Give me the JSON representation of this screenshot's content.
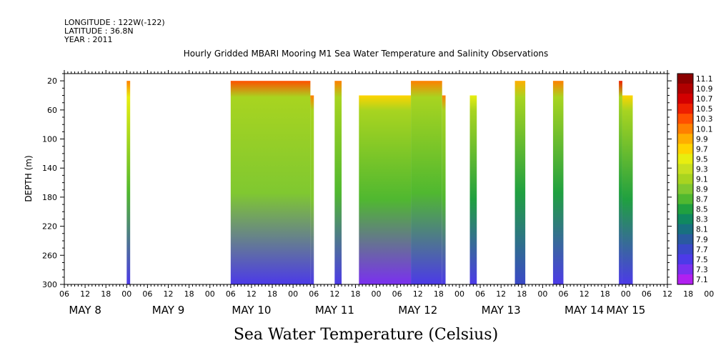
{
  "header": {
    "longitude": "LONGITUDE : 122W(-122)",
    "latitude": "LATITUDE : 36.8N",
    "year": "YEAR : 2011"
  },
  "chart_data": {
    "type": "heatmap",
    "title": "Hourly Gridded MBARI Mooring M1 Sea Water Temperature and Salinity Observations",
    "ylabel": "DEPTH (m)",
    "ylim": [
      300,
      10
    ],
    "y_reversed": true,
    "yticks": [
      20,
      60,
      100,
      140,
      180,
      220,
      260,
      300
    ],
    "xlim_hours": [
      0,
      174
    ],
    "hour_tick_labels": [
      "06",
      "12",
      "18",
      "00",
      "06",
      "12",
      "18",
      "00",
      "06",
      "12",
      "18",
      "00",
      "06",
      "12",
      "18",
      "00",
      "06",
      "12",
      "18",
      "00",
      "06",
      "12",
      "18",
      "00",
      "06",
      "12",
      "18",
      "00",
      "06",
      "12",
      "18",
      "00"
    ],
    "day_labels": [
      "MAY  8",
      "MAY  9",
      "MAY 10",
      "MAY 11",
      "MAY 12",
      "MAY 13",
      "MAY 14",
      "MAY 15"
    ],
    "xlabel": "Sea Water Temperature (Celsius)",
    "colorbar": {
      "levels": [
        "11.1",
        "10.9",
        "10.7",
        "10.5",
        "10.3",
        "10.1",
        "9.9",
        "9.7",
        "9.5",
        "9.3",
        "9.1",
        "8.9",
        "8.7",
        "8.5",
        "8.3",
        "8.1",
        "7.9",
        "7.7",
        "7.5",
        "7.3",
        "7.1"
      ],
      "colors": [
        "#8b0000",
        "#b00000",
        "#d40000",
        "#ee2000",
        "#ff5000",
        "#ff8000",
        "#ffae00",
        "#ffd400",
        "#e8ee10",
        "#c8e020",
        "#a8d420",
        "#80c830",
        "#50b830",
        "#20a040",
        "#108860",
        "#187080",
        "#2a5aa0",
        "#3a48c8",
        "#4c3ae8",
        "#7a30f0",
        "#b020f0"
      ]
    },
    "data_segments": [
      {
        "start_hour": 18,
        "end_hour": 19,
        "depth_min": 20,
        "top_c": 10.1,
        "surface_c": 9.4,
        "mid_c": 8.6,
        "bottom_c": 7.6
      },
      {
        "start_hour": 48,
        "end_hour": 71,
        "depth_min": 20,
        "top_c": 10.3,
        "surface_c": 9.2,
        "mid_c": 8.8,
        "bottom_c": 7.4
      },
      {
        "start_hour": 71,
        "end_hour": 72,
        "depth_min": 40,
        "top_c": 10.0,
        "surface_c": 9.2,
        "mid_c": 8.8,
        "bottom_c": 7.4
      },
      {
        "start_hour": 78,
        "end_hour": 80,
        "depth_min": 20,
        "top_c": 10.0,
        "surface_c": 9.1,
        "mid_c": 8.6,
        "bottom_c": 7.6
      },
      {
        "start_hour": 85,
        "end_hour": 95,
        "depth_min": 40,
        "top_c": 9.7,
        "surface_c": 9.1,
        "mid_c": 8.7,
        "bottom_c": 7.2
      },
      {
        "start_hour": 94,
        "end_hour": 100,
        "depth_min": 40,
        "top_c": 9.7,
        "surface_c": 9.1,
        "mid_c": 8.7,
        "bottom_c": 7.2
      },
      {
        "start_hour": 100,
        "end_hour": 109,
        "depth_min": 20,
        "top_c": 10.2,
        "surface_c": 9.2,
        "mid_c": 8.7,
        "bottom_c": 7.4
      },
      {
        "start_hour": 109,
        "end_hour": 110,
        "depth_min": 40,
        "top_c": 10.0,
        "surface_c": 9.2,
        "mid_c": 8.7,
        "bottom_c": 7.4
      },
      {
        "start_hour": 117,
        "end_hour": 119,
        "depth_min": 40,
        "top_c": 9.4,
        "surface_c": 9.0,
        "mid_c": 8.5,
        "bottom_c": 7.6
      },
      {
        "start_hour": 130,
        "end_hour": 133,
        "depth_min": 20,
        "top_c": 9.9,
        "surface_c": 9.1,
        "mid_c": 8.5,
        "bottom_c": 7.7
      },
      {
        "start_hour": 141,
        "end_hour": 144,
        "depth_min": 20,
        "top_c": 10.2,
        "surface_c": 9.2,
        "mid_c": 8.5,
        "bottom_c": 7.6
      },
      {
        "start_hour": 160,
        "end_hour": 161,
        "depth_min": 20,
        "top_c": 10.4,
        "surface_c": 9.1,
        "mid_c": 8.5,
        "bottom_c": 7.6
      },
      {
        "start_hour": 161,
        "end_hour": 164,
        "depth_min": 40,
        "top_c": 9.6,
        "surface_c": 9.1,
        "mid_c": 8.5,
        "bottom_c": 7.6
      }
    ],
    "gaps": [
      {
        "start_hour": 88,
        "end_hour": 90,
        "depth_min": 20,
        "depth_max": 32
      },
      {
        "start_hour": 92,
        "end_hour": 93,
        "depth_min": 20,
        "depth_max": 32
      }
    ]
  }
}
